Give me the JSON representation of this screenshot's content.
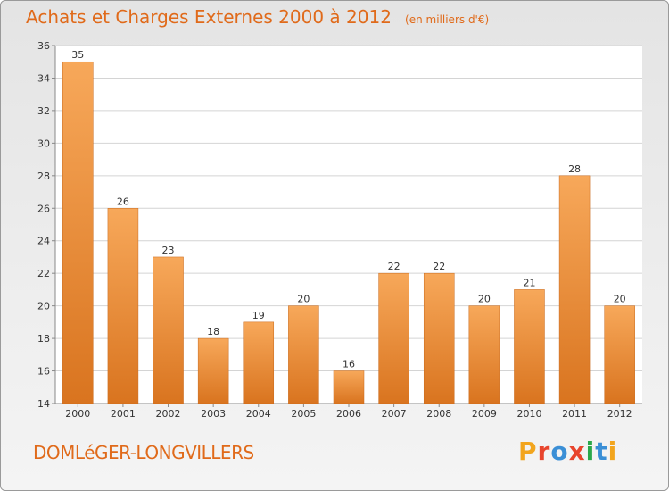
{
  "header": {
    "title": "Achats et Charges Externes 2000 à 2012",
    "unit": "(en milliers d'€)"
  },
  "footer": {
    "place": "DOMLéGER-LONGVILLERS",
    "logo": "Proxiti"
  },
  "colors": {
    "bar_light": "#f7a85a",
    "bar_dark": "#d9741f",
    "accent": "#e06a1a",
    "logo_letters": [
      "#f2a51e",
      "#e8452d",
      "#3b8fd6",
      "#e8452d",
      "#2ba84a",
      "#3b8fd6",
      "#f2a51e"
    ]
  },
  "chart_data": {
    "type": "bar",
    "title": "Achats et Charges Externes 2000 à 2012",
    "subtitle": "(en milliers d'€)",
    "categories": [
      "2000",
      "2001",
      "2002",
      "2003",
      "2004",
      "2005",
      "2006",
      "2007",
      "2008",
      "2009",
      "2010",
      "2011",
      "2012"
    ],
    "values": [
      35,
      26,
      23,
      18,
      19,
      20,
      16,
      22,
      22,
      20,
      21,
      28,
      20
    ],
    "ylim": [
      14,
      36
    ],
    "yticks": [
      14,
      16,
      18,
      20,
      22,
      24,
      26,
      28,
      30,
      32,
      34,
      36
    ],
    "grid": true,
    "legend": "none"
  }
}
